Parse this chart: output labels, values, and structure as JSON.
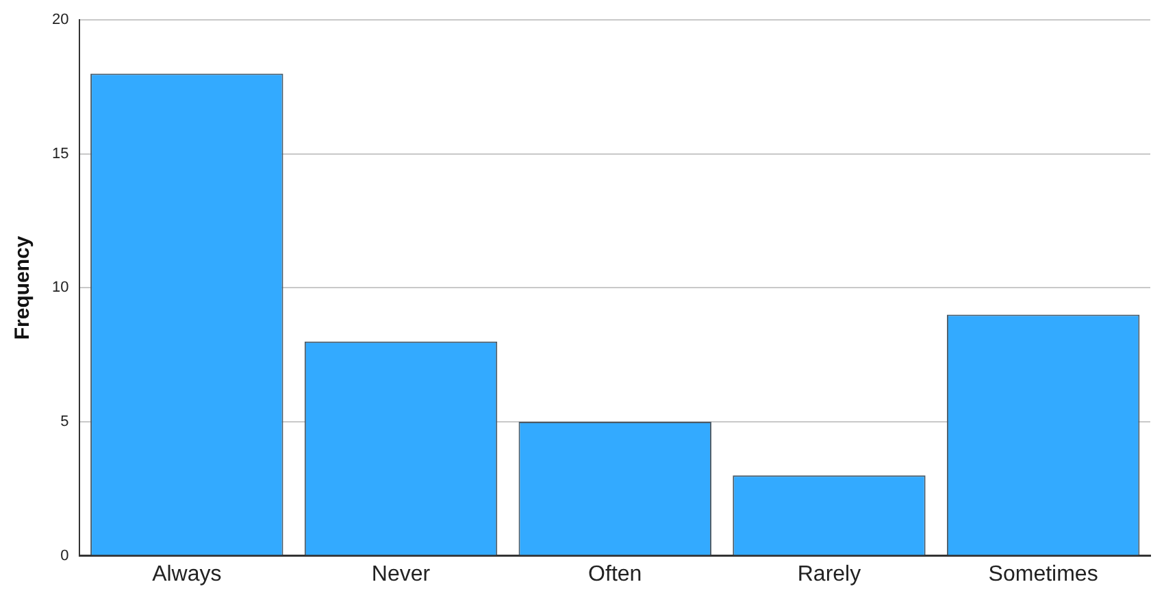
{
  "chart_data": {
    "type": "bar",
    "ylabel": "Frequency",
    "categories": [
      "Always",
      "Never",
      "Often",
      "Rarely",
      "Sometimes"
    ],
    "values": [
      18,
      8,
      5,
      3,
      9
    ],
    "color": "#33aaff",
    "ylim": [
      0,
      20
    ],
    "yticks": [
      0,
      5,
      10,
      15,
      20
    ],
    "grid": "y",
    "legend": false
  }
}
